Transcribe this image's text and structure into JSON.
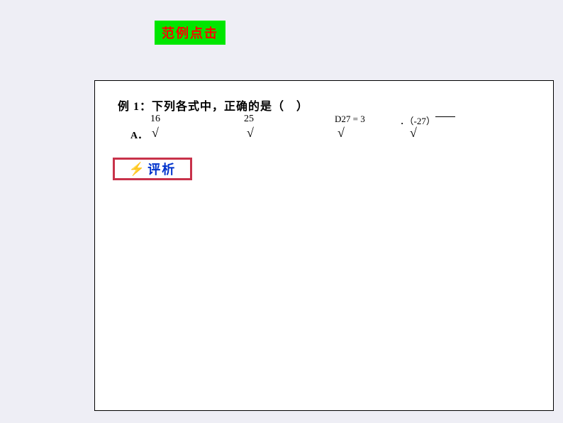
{
  "header": {
    "badge_text": "范例点击",
    "badge_bg_color": "#00e600",
    "badge_text_color": "#ff0000"
  },
  "content": {
    "question": "例 1：下列各式中，正确的是（　）",
    "options": {
      "a": {
        "label": "A．",
        "number": "16",
        "sqrt": "√"
      },
      "b": {
        "number": "25",
        "sqrt": "√"
      },
      "c": {
        "expr": "27  = 3",
        "prefix": "D",
        "sqrt": "√"
      },
      "d": {
        "expr": "．（-27）",
        "sqrt": "√"
      }
    },
    "analysis": {
      "icon": "⚡",
      "text": "评析",
      "border_color": "#c8324a",
      "text_color": "#0033cc",
      "icon_color": "#ff6600"
    }
  },
  "layout": {
    "page_bg": "#eeeef5",
    "content_bg": "#ffffff",
    "content_border": "#000000"
  }
}
